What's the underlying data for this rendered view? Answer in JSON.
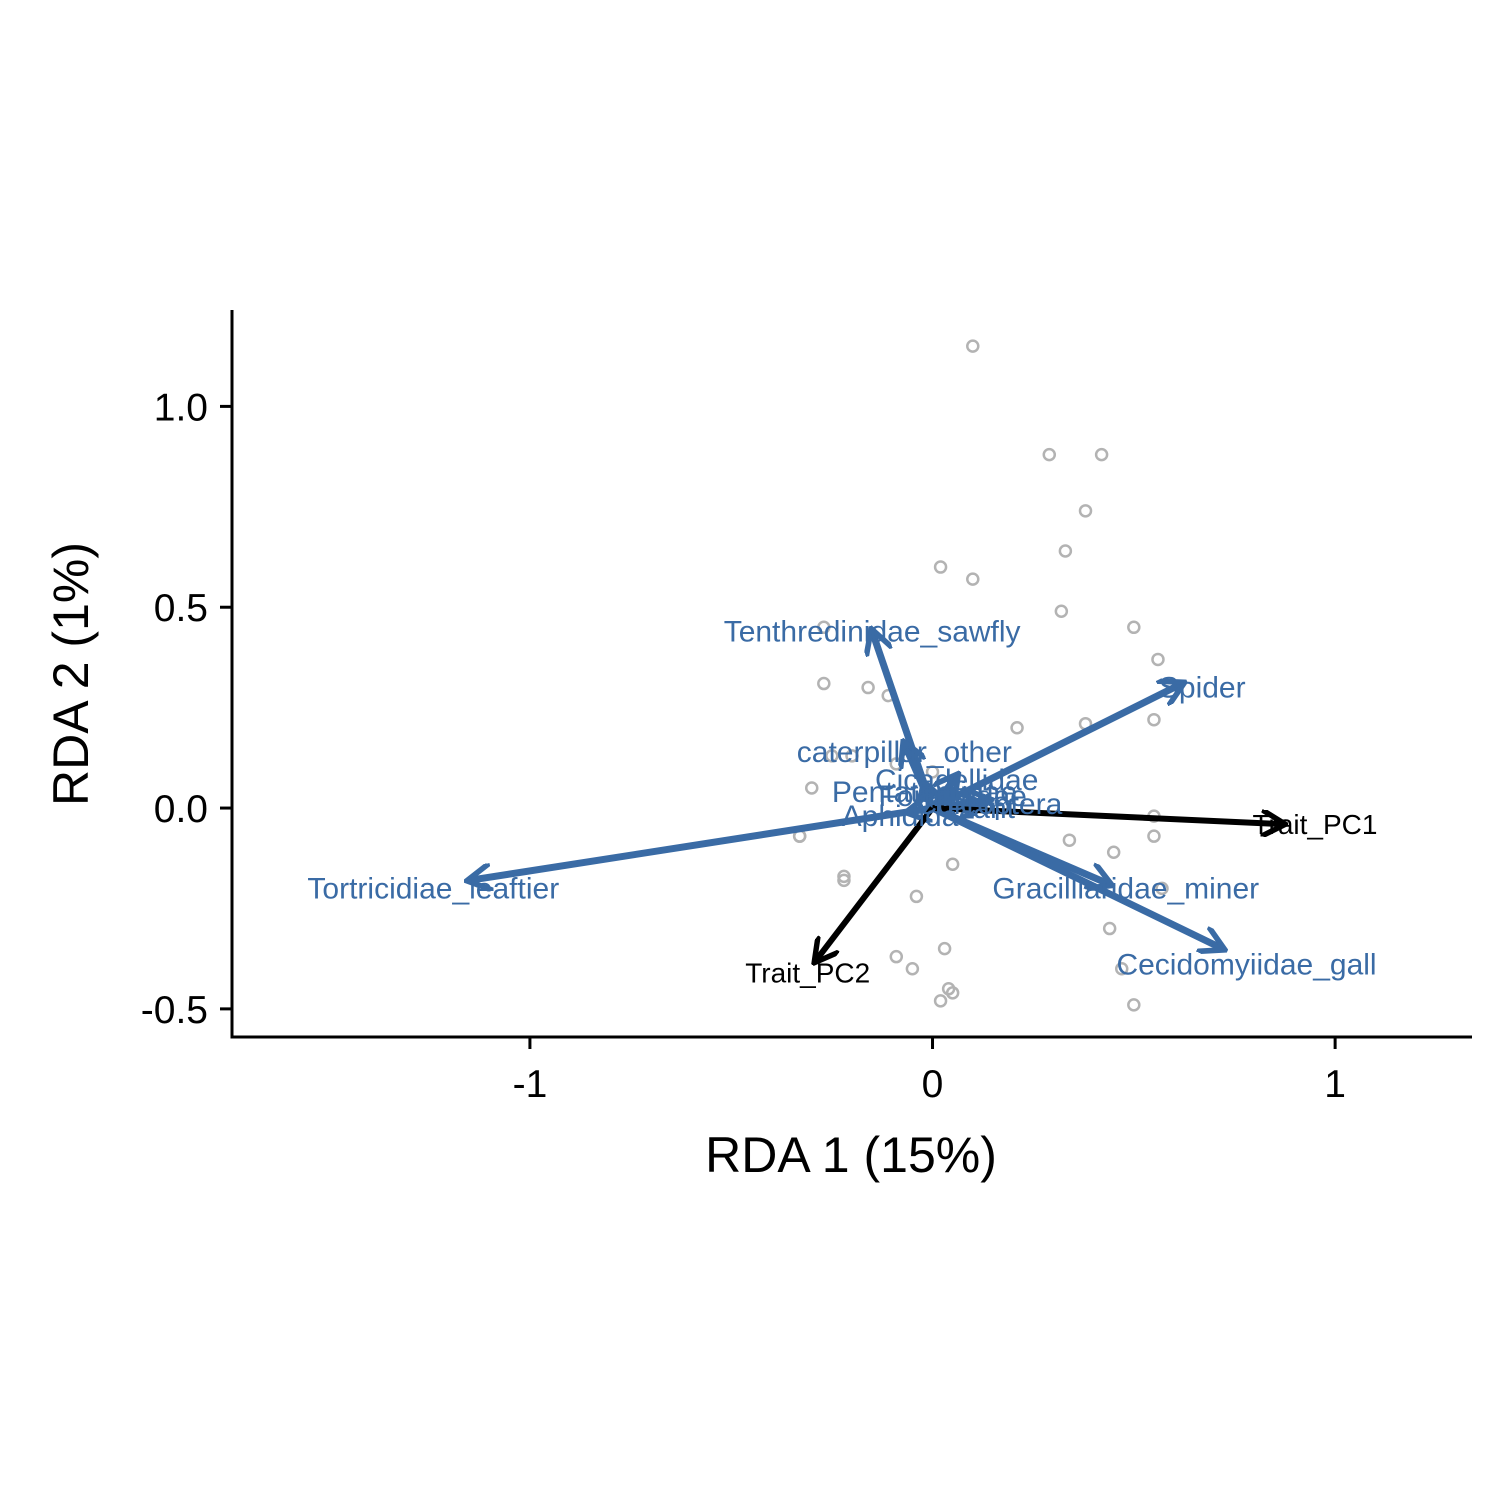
{
  "chart_data": {
    "type": "scatter",
    "subtype": "rda-biplot",
    "xlabel": "RDA 1 (15%)",
    "ylabel": "RDA 2 (1%)",
    "xlim": [
      -1.74,
      1.34
    ],
    "ylim": [
      -0.57,
      1.24
    ],
    "x_ticks": [
      {
        "value": -1,
        "label": "-1"
      },
      {
        "value": 0,
        "label": "0"
      },
      {
        "value": 1,
        "label": "1"
      }
    ],
    "y_ticks": [
      {
        "value": -0.5,
        "label": "-0.5"
      },
      {
        "value": 0,
        "label": "0.0"
      },
      {
        "value": 0.5,
        "label": "0.5"
      },
      {
        "value": 1,
        "label": "1.0"
      }
    ],
    "grid": false,
    "legend": "none",
    "colors": {
      "species": "#3A6BA5",
      "traits": "#000000",
      "sites": "#b3b3b3"
    },
    "sites": [
      [
        0.1,
        1.15
      ],
      [
        0.29,
        0.88
      ],
      [
        0.42,
        0.88
      ],
      [
        0.38,
        0.74
      ],
      [
        0.33,
        0.64
      ],
      [
        0.02,
        0.6
      ],
      [
        0.1,
        0.57
      ],
      [
        0.32,
        0.49
      ],
      [
        0.5,
        0.45
      ],
      [
        0.56,
        0.37
      ],
      [
        0.55,
        0.22
      ],
      [
        0.38,
        0.21
      ],
      [
        0.21,
        0.2
      ],
      [
        -0.27,
        0.45
      ],
      [
        -0.27,
        0.31
      ],
      [
        -0.16,
        0.3
      ],
      [
        -0.11,
        0.28
      ],
      [
        -0.25,
        0.13
      ],
      [
        -0.2,
        0.13
      ],
      [
        -0.09,
        0.11
      ],
      [
        0.0,
        0.09
      ],
      [
        -0.3,
        0.05
      ],
      [
        -0.33,
        -0.07
      ],
      [
        -0.33,
        -0.07
      ],
      [
        -0.22,
        -0.17
      ],
      [
        -0.22,
        -0.18
      ],
      [
        -0.04,
        -0.22
      ],
      [
        0.05,
        -0.14
      ],
      [
        0.34,
        -0.08
      ],
      [
        0.55,
        -0.02
      ],
      [
        0.55,
        -0.07
      ],
      [
        0.45,
        -0.11
      ],
      [
        0.57,
        -0.2
      ],
      [
        0.44,
        -0.3
      ],
      [
        0.47,
        -0.4
      ],
      [
        0.5,
        -0.49
      ],
      [
        0.03,
        -0.35
      ],
      [
        0.04,
        -0.45
      ],
      [
        0.05,
        -0.46
      ],
      [
        0.02,
        -0.48
      ],
      [
        -0.05,
        -0.4
      ],
      [
        -0.09,
        -0.37
      ]
    ],
    "species": [
      {
        "name": "Tenthredinidae_sawfly",
        "x": -0.15,
        "y": 0.44,
        "label_x": -0.15,
        "label_y": 0.44
      },
      {
        "name": "Spider",
        "x": 0.62,
        "y": 0.31,
        "label_x": 0.67,
        "label_y": 0.3
      },
      {
        "name": "caterpillar_other",
        "x": -0.07,
        "y": 0.16,
        "label_x": -0.07,
        "label_y": 0.14
      },
      {
        "name": "Cicadellidae",
        "x": 0.06,
        "y": 0.08,
        "label_x": 0.06,
        "label_y": 0.07
      },
      {
        "name": "Pentatomidae",
        "x": -0.02,
        "y": 0.06,
        "label_x": -0.02,
        "label_y": 0.04
      },
      {
        "name": "Formicidae",
        "x": 0.05,
        "y": 0.04,
        "label_x": 0.05,
        "label_y": 0.03
      },
      {
        "name": "Coleoptera",
        "x": 0.14,
        "y": 0.02,
        "label_x": 0.14,
        "label_y": 0.01
      },
      {
        "name": "Plant",
        "x": 0.12,
        "y": 0.01,
        "label_x": 0.12,
        "label_y": 0.0
      },
      {
        "name": "Aphididae",
        "x": -0.06,
        "y": -0.01,
        "label_x": -0.06,
        "label_y": -0.02
      },
      {
        "name": "Tortricidiae_leaftier",
        "x": -1.15,
        "y": -0.18,
        "label_x": -1.24,
        "label_y": -0.2
      },
      {
        "name": "Gracilliaridae_miner",
        "x": 0.44,
        "y": -0.19,
        "label_x": 0.48,
        "label_y": -0.2
      },
      {
        "name": "Cecidomyiidae_gall",
        "x": 0.72,
        "y": -0.35,
        "label_x": 0.78,
        "label_y": -0.39
      }
    ],
    "traits": [
      {
        "name": "Trait_PC1",
        "x": 0.87,
        "y": -0.04,
        "label_x": 0.95,
        "label_y": -0.04
      },
      {
        "name": "Trait_PC2",
        "x": -0.29,
        "y": -0.38,
        "label_x": -0.31,
        "label_y": -0.41
      }
    ]
  }
}
